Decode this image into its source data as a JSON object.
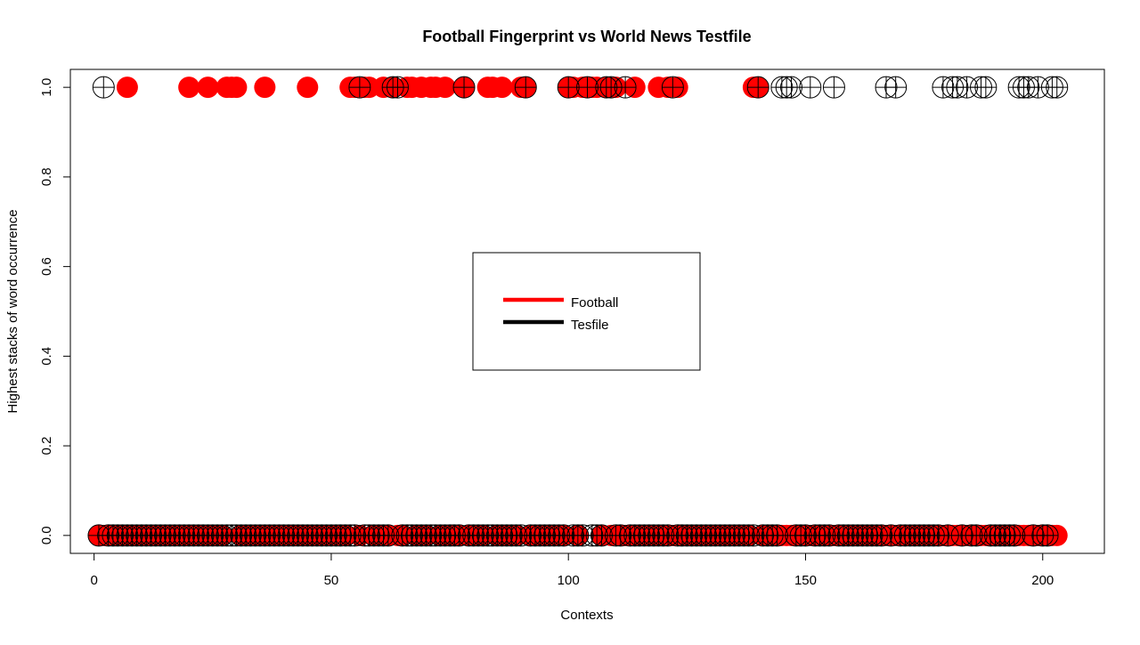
{
  "chart_data": {
    "type": "scatter",
    "title": "Football Fingerprint vs World News Testfile",
    "xlabel": "Contexts",
    "ylabel": "Highest stacks of word occurrence",
    "xlim": [
      -5,
      213
    ],
    "ylim": [
      -0.04,
      1.04
    ],
    "x_ticks": [
      0,
      50,
      100,
      150,
      200
    ],
    "y_ticks": [
      0.0,
      0.2,
      0.4,
      0.6,
      0.8,
      1.0
    ],
    "x_tick_labels": [
      "0",
      "50",
      "100",
      "150",
      "200"
    ],
    "y_tick_labels": [
      "0.0",
      "0.2",
      "0.4",
      "0.6",
      "0.8",
      "1.0"
    ],
    "grid": false,
    "legend": {
      "position": "center",
      "entries": [
        {
          "label": "Football",
          "color": "#ff0000"
        },
        {
          "label": "Tesfile",
          "color": "#000000"
        }
      ]
    },
    "series": [
      {
        "name": "Football",
        "color": "#ff0000",
        "marker": "filled-circle",
        "ones_x": [
          7,
          20,
          24,
          28,
          29,
          30,
          36,
          45,
          54,
          55,
          57,
          58,
          61,
          63,
          66,
          67,
          69,
          71,
          72,
          74,
          78,
          83,
          84,
          86,
          90,
          91,
          100,
          101,
          103,
          104,
          105,
          106,
          108,
          110,
          114,
          119,
          121,
          123,
          139,
          140
        ],
        "zeros_x_range": [
          1,
          203
        ],
        "zeros_x_gaps": [
          7,
          20,
          24,
          28,
          29,
          30,
          36,
          45,
          54,
          55,
          57,
          58,
          61,
          63,
          66,
          67,
          69,
          71,
          72,
          74,
          78,
          83,
          84,
          86,
          90,
          91,
          100,
          101,
          103,
          104,
          105,
          106,
          108,
          110,
          114,
          119,
          121,
          123,
          139,
          140
        ]
      },
      {
        "name": "Tesfile",
        "color": "#000000",
        "marker": "circle-plus",
        "ones_x": [
          2,
          56,
          63,
          64,
          78,
          91,
          100,
          104,
          108,
          109,
          112,
          122,
          140,
          145,
          146,
          147,
          151,
          156,
          167,
          169,
          179,
          181,
          182,
          184,
          187,
          188,
          195,
          196,
          197,
          199,
          202,
          203
        ],
        "zeros_x_range": [
          1,
          203
        ],
        "zeros_x_gaps": [
          2,
          56,
          63,
          64,
          78,
          91,
          100,
          104,
          108,
          109,
          112,
          122,
          140,
          145,
          146,
          147,
          151,
          156,
          167,
          169,
          179,
          181,
          182,
          184,
          187,
          188,
          195,
          196,
          197,
          199,
          202,
          203
        ]
      }
    ]
  }
}
